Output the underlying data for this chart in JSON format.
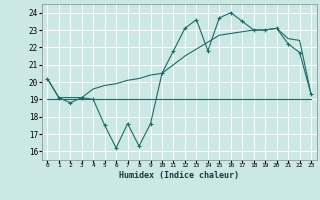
{
  "title": "",
  "xlabel": "Humidex (Indice chaleur)",
  "xlim": [
    -0.5,
    23.5
  ],
  "ylim": [
    15.5,
    24.5
  ],
  "yticks": [
    16,
    17,
    18,
    19,
    20,
    21,
    22,
    23,
    24
  ],
  "xticks": [
    0,
    1,
    2,
    3,
    4,
    5,
    6,
    7,
    8,
    9,
    10,
    11,
    12,
    13,
    14,
    15,
    16,
    17,
    18,
    19,
    20,
    21,
    22,
    23
  ],
  "bg_color": "#cce8e4",
  "grid_color": "#ffffff",
  "line_color": "#1a6b6b",
  "series1_x": [
    0,
    1,
    2,
    3,
    4,
    5,
    6,
    7,
    8,
    9,
    10,
    11,
    12,
    13,
    14,
    15,
    16,
    17,
    18,
    19,
    20,
    21,
    22,
    23
  ],
  "series1_y": [
    20.2,
    19.1,
    18.8,
    19.1,
    19.0,
    17.5,
    16.2,
    17.6,
    16.3,
    17.6,
    20.5,
    21.8,
    23.1,
    23.6,
    21.8,
    23.7,
    24.0,
    23.5,
    23.0,
    23.0,
    23.1,
    22.2,
    21.7,
    19.3
  ],
  "series2_x": [
    0,
    1,
    2,
    3,
    4,
    5,
    6,
    7,
    8,
    9,
    10,
    11,
    12,
    13,
    14,
    15,
    16,
    17,
    18,
    19,
    20,
    21,
    22,
    23
  ],
  "series2_y": [
    20.2,
    19.1,
    19.1,
    19.1,
    19.6,
    19.8,
    19.9,
    20.1,
    20.2,
    20.4,
    20.5,
    21.0,
    21.5,
    21.9,
    22.3,
    22.7,
    22.8,
    22.9,
    23.0,
    23.0,
    23.1,
    22.5,
    22.4,
    19.3
  ],
  "series3_x": [
    0,
    1,
    2,
    3,
    4,
    9,
    10,
    11,
    12,
    13,
    14,
    15,
    16,
    17,
    18,
    19,
    20,
    21,
    22,
    23
  ],
  "series3_y": [
    19.0,
    19.0,
    19.0,
    19.0,
    19.0,
    19.0,
    19.0,
    19.0,
    19.0,
    19.0,
    19.0,
    19.0,
    19.0,
    19.0,
    19.0,
    19.0,
    19.0,
    19.0,
    19.0,
    19.0
  ]
}
